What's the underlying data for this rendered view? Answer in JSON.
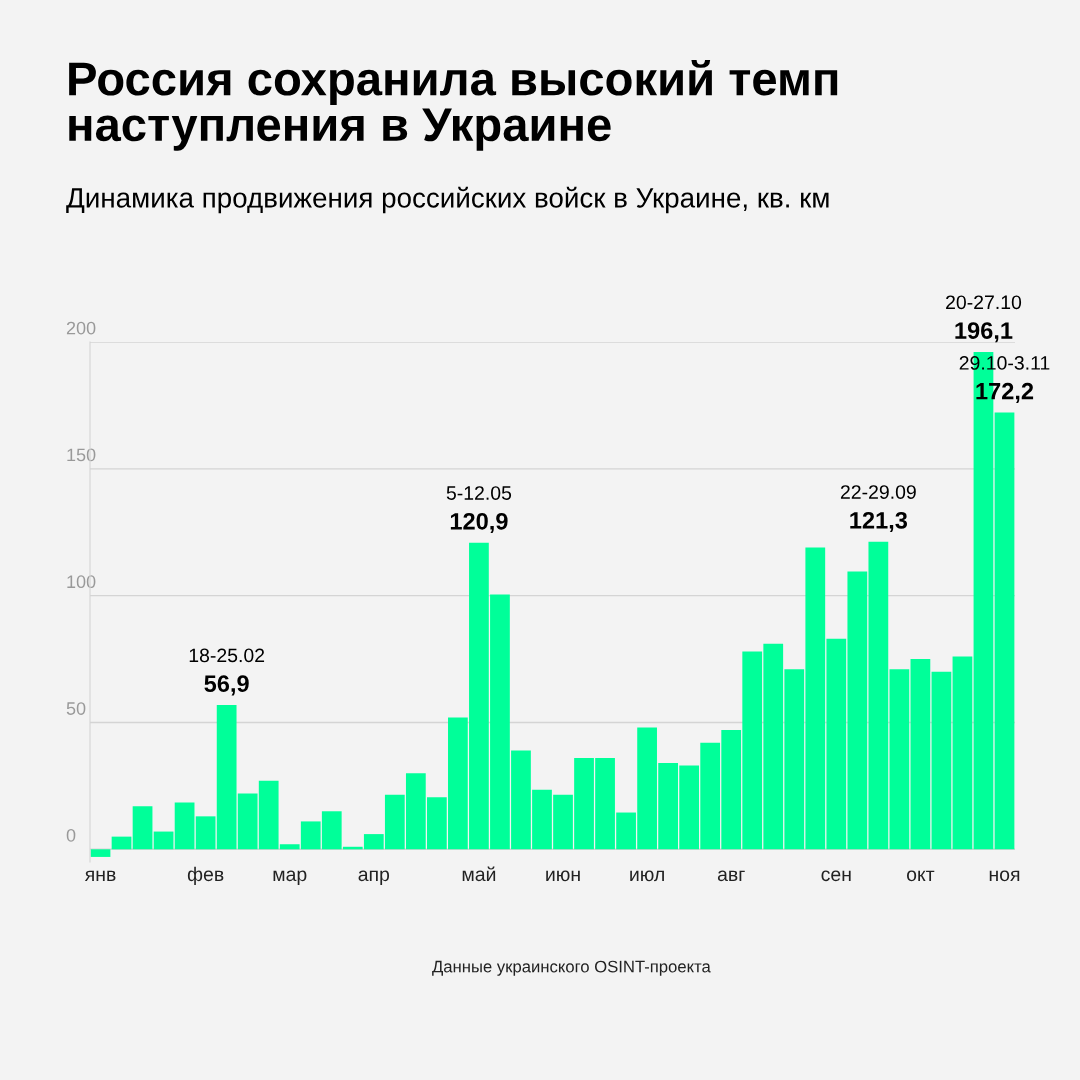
{
  "chart_data": {
    "type": "bar",
    "title": "Россия сохранила высокий темп\nнаступления в Украине",
    "subtitle": "Динамика продвижения российских войск в Украине, кв. км",
    "categories": [
      "янв",
      null,
      null,
      null,
      null,
      "фев",
      null,
      null,
      null,
      "мар",
      null,
      null,
      null,
      "апр",
      null,
      null,
      null,
      null,
      "май",
      null,
      null,
      null,
      "июн",
      null,
      null,
      null,
      "июл",
      null,
      null,
      null,
      "авг",
      null,
      null,
      null,
      null,
      "сен",
      null,
      null,
      null,
      "окт",
      null,
      null,
      null,
      "ноя"
    ],
    "values": [
      -3,
      5,
      17,
      7,
      18.5,
      13,
      56.9,
      22,
      27,
      2,
      11,
      15,
      1,
      6,
      21.5,
      30,
      20.5,
      52,
      120.9,
      100.5,
      39,
      23.5,
      21.5,
      36,
      36,
      14.5,
      48,
      34,
      33,
      42,
      47,
      78,
      81,
      71,
      119,
      83,
      109.5,
      121.3,
      71,
      75,
      70,
      76,
      196.1,
      172.2
    ],
    "value_labels": [
      null,
      null,
      null,
      null,
      null,
      null,
      "56,9",
      null,
      null,
      null,
      null,
      null,
      null,
      null,
      null,
      null,
      null,
      null,
      "120,9",
      null,
      null,
      null,
      null,
      null,
      null,
      null,
      null,
      null,
      null,
      null,
      null,
      null,
      null,
      null,
      null,
      null,
      null,
      "121,3",
      null,
      null,
      null,
      null,
      "196,1",
      "172,2"
    ],
    "color": "#00ff99",
    "ylim": [
      -5,
      200
    ],
    "yticks": [
      0,
      50,
      100,
      150,
      200
    ],
    "grid": "y",
    "annotations": [
      {
        "text": "18-25.02",
        "y": 56.9
      },
      {
        "text": "5-12.05",
        "y": 120.9
      },
      {
        "text": "22-29.09",
        "y": 121.3
      },
      {
        "text": "20-27.10",
        "y": 196.1
      },
      {
        "text": "29.10-3.11",
        "y": 172.2
      },
      "Данные украинского OSINT-проекта"
    ]
  }
}
